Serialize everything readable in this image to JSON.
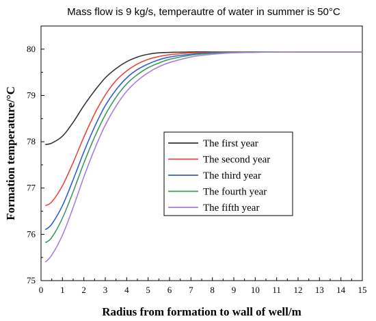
{
  "chart_data": {
    "type": "line",
    "title": "Mass flow is 9 kg/s, temperautre of water in summer is 50°C",
    "xlabel": "Radius from formation to wall of well/m",
    "ylabel": "Formation temperature/°C",
    "xlim": [
      0,
      15
    ],
    "ylim": [
      75,
      80.5
    ],
    "xticks": [
      "0",
      "1",
      "2",
      "3",
      "4",
      "5",
      "6",
      "7",
      "8",
      "9",
      "10",
      "11",
      "12",
      "13",
      "14",
      "15"
    ],
    "yticks": [
      "75",
      "76",
      "77",
      "78",
      "79",
      "80"
    ],
    "grid": false,
    "legend_position": "center-right",
    "x": [
      0.2,
      0.5,
      1.0,
      1.5,
      2.0,
      2.5,
      3.0,
      3.5,
      4.0,
      4.5,
      5.0,
      5.5,
      6.0,
      7.0,
      8.0,
      9.0,
      10.0,
      11.0,
      12.0,
      13.0,
      14.0,
      15.0
    ],
    "series": [
      {
        "name": "The first year",
        "color": "#333333",
        "values": [
          77.94,
          77.97,
          78.12,
          78.42,
          78.78,
          79.1,
          79.38,
          79.58,
          79.73,
          79.83,
          79.89,
          79.92,
          79.93,
          79.94,
          79.94,
          79.94,
          79.94,
          79.94,
          79.94,
          79.94,
          79.94,
          79.94
        ]
      },
      {
        "name": "The second year",
        "color": "#e8463a",
        "values": [
          76.62,
          76.7,
          77.05,
          77.55,
          78.1,
          78.6,
          79.01,
          79.32,
          79.53,
          79.68,
          79.78,
          79.84,
          79.88,
          79.92,
          79.93,
          79.94,
          79.94,
          79.94,
          79.94,
          79.94,
          79.94,
          79.94
        ]
      },
      {
        "name": "The third year",
        "color": "#2f5fd6",
        "values": [
          76.1,
          76.22,
          76.62,
          77.18,
          77.78,
          78.32,
          78.78,
          79.12,
          79.38,
          79.56,
          79.68,
          79.77,
          79.83,
          79.89,
          79.92,
          79.93,
          79.94,
          79.94,
          79.94,
          79.94,
          79.94,
          79.94
        ]
      },
      {
        "name": "The fourth year",
        "color": "#3a9a5c",
        "values": [
          75.82,
          75.93,
          76.35,
          76.92,
          77.54,
          78.1,
          78.58,
          78.96,
          79.25,
          79.45,
          79.6,
          79.7,
          79.78,
          79.87,
          79.91,
          79.93,
          79.94,
          79.94,
          79.94,
          79.94,
          79.94,
          79.94
        ]
      },
      {
        "name": "The fifth year",
        "color": "#a67de0",
        "values": [
          75.4,
          75.55,
          75.98,
          76.58,
          77.24,
          77.84,
          78.36,
          78.77,
          79.09,
          79.32,
          79.49,
          79.62,
          79.71,
          79.83,
          79.89,
          79.92,
          79.93,
          79.94,
          79.94,
          79.94,
          79.94,
          79.94
        ]
      }
    ]
  }
}
